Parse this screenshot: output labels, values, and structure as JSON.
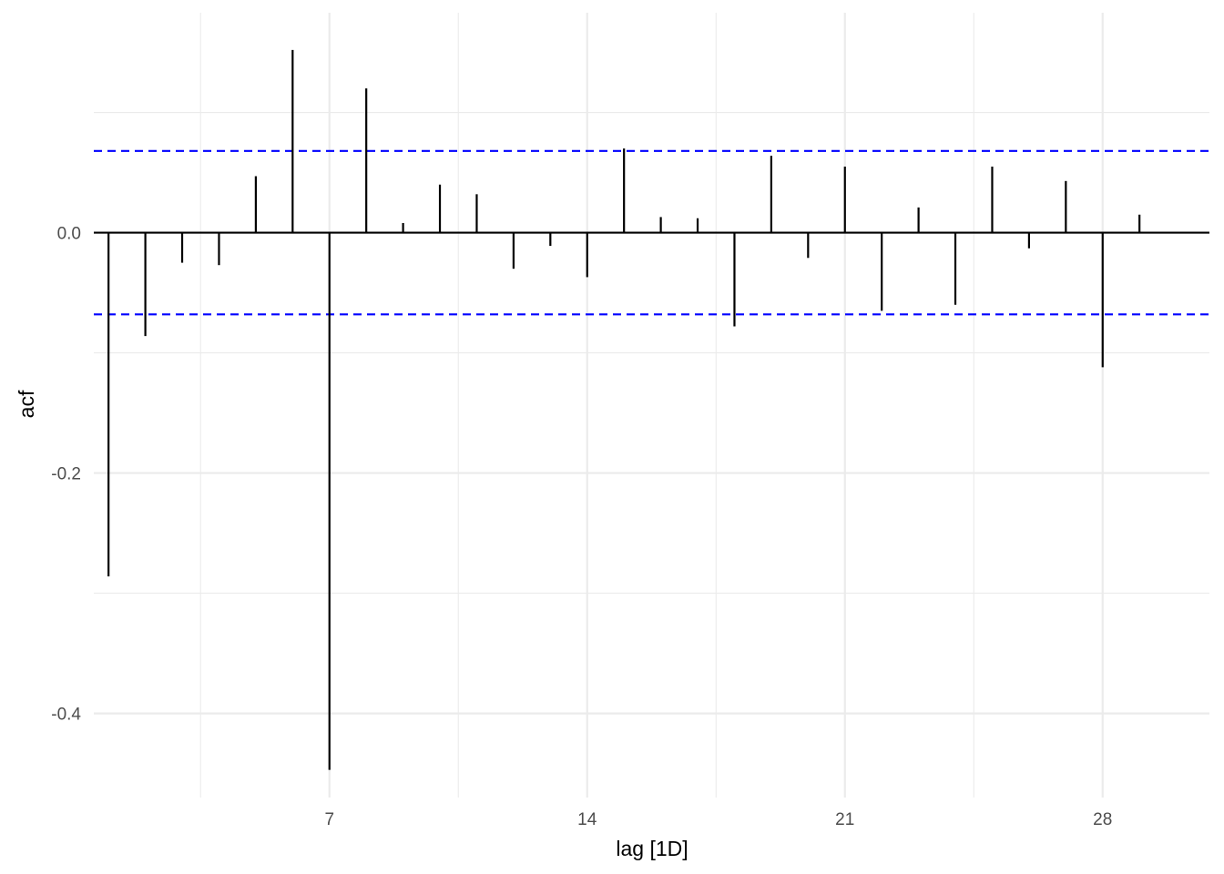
{
  "chart_data": {
    "type": "bar",
    "subtype": "acf-correlogram",
    "xlabel": "lag [1D]",
    "ylabel": "acf",
    "x_ticks": [
      7,
      14,
      21,
      28
    ],
    "y_ticks": [
      0.0,
      -0.2,
      -0.4
    ],
    "y_tick_labels": [
      "0.0",
      "-0.2",
      "-0.4"
    ],
    "xlim": [
      0.6,
      30.9
    ],
    "ylim": [
      -0.47,
      0.183
    ],
    "grid": true,
    "confidence_bounds": [
      0.068,
      -0.068
    ],
    "colors": {
      "bars": "#000000",
      "bounds": "#0000ff",
      "grid": "#ebebeb",
      "zero_line": "#000000"
    },
    "lags": [
      1,
      2,
      3,
      4,
      5,
      6,
      7,
      8,
      9,
      10,
      11,
      12,
      13,
      14,
      15,
      16,
      17,
      18,
      19,
      20,
      21,
      22,
      23,
      24,
      25,
      26,
      27,
      28,
      29
    ],
    "values": [
      -0.286,
      -0.086,
      -0.025,
      -0.027,
      0.047,
      0.152,
      -0.447,
      0.12,
      0.008,
      0.04,
      0.032,
      -0.03,
      -0.011,
      -0.037,
      0.07,
      0.013,
      0.012,
      -0.078,
      0.064,
      -0.021,
      0.055,
      -0.065,
      0.021,
      -0.06,
      0.055,
      -0.013,
      0.043,
      -0.112,
      0.015
    ]
  }
}
